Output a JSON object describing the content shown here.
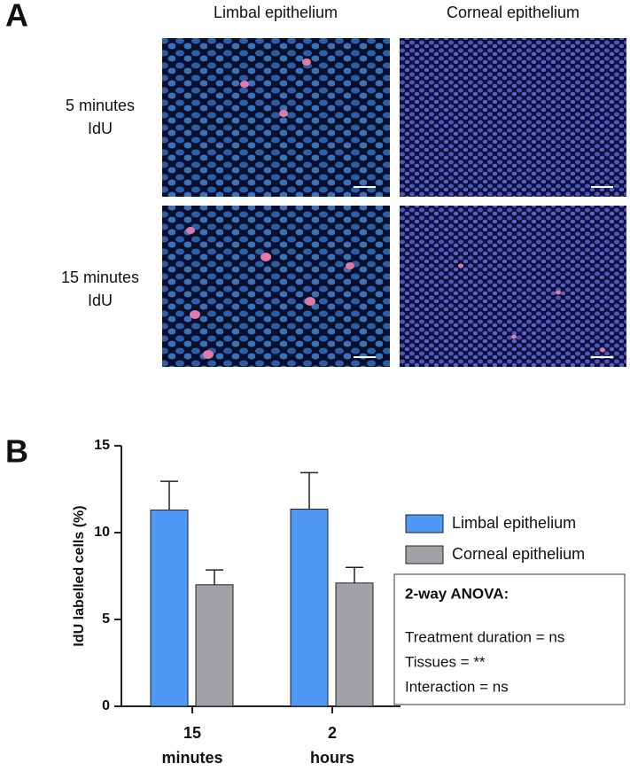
{
  "panel_a": {
    "label": "A",
    "columns": [
      "Limbal epithelium",
      "Corneal epithelium"
    ],
    "rows": [
      [
        "5 minutes",
        "IdU"
      ],
      [
        "15 minutes",
        "IdU"
      ]
    ]
  },
  "chart_data": {
    "type": "bar",
    "panel_label": "B",
    "y_label": "IdU labelled cells (%)",
    "categories": [
      "15 minutes",
      "2 hours"
    ],
    "series": [
      {
        "name": "Limbal epithelium",
        "color": "#4f99f5",
        "values": [
          11.3,
          11.35
        ],
        "errors": [
          1.65,
          2.1
        ]
      },
      {
        "name": "Corneal epithelium",
        "color": "#a2a2a6",
        "values": [
          7.0,
          7.1
        ],
        "errors": [
          0.85,
          0.9
        ]
      }
    ],
    "ylim": [
      0,
      15
    ],
    "yticks": [
      0,
      5,
      10,
      15
    ],
    "annotation": {
      "title": "2-way ANOVA:",
      "lines": [
        "Treatment duration = ns",
        "Tissues = **",
        "Interaction = ns"
      ]
    }
  }
}
